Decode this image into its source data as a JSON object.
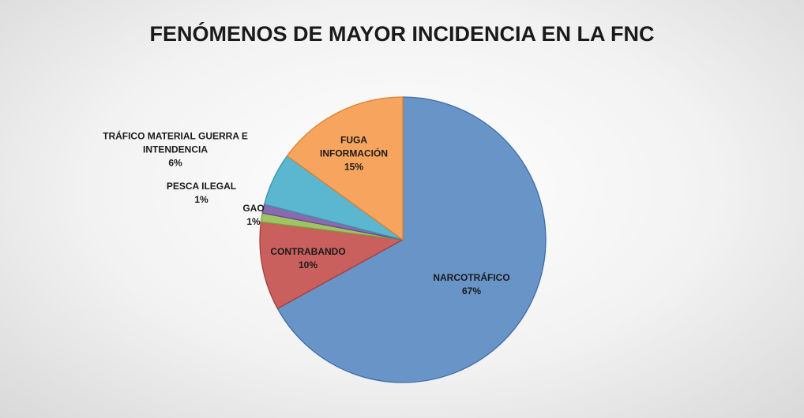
{
  "chart_data": {
    "type": "pie",
    "title": "FENÓMENOS DE MAYOR INCIDENCIA EN LA FNC",
    "categories": [
      "NARCOTRÁFICO",
      "CONTRABANDO",
      "GAO",
      "PESCA ILEGAL",
      "TRÁFICO MATERIAL GUERRA E INTENDENCIA",
      "FUGA INFORMACIÓN"
    ],
    "values": [
      67,
      10,
      1,
      1,
      6,
      15
    ],
    "value_labels": [
      "67%",
      "10%",
      "1%",
      "1%",
      "6%",
      "15%"
    ],
    "colors": [
      "#6894c8",
      "#c9605e",
      "#9fc464",
      "#8a6aae",
      "#5bb6cf",
      "#f7a55e"
    ],
    "strokes": [
      "#3f6ea5",
      "#a43f3c",
      "#7c9e45",
      "#674a8a",
      "#3a93ab",
      "#e07f2f"
    ]
  }
}
